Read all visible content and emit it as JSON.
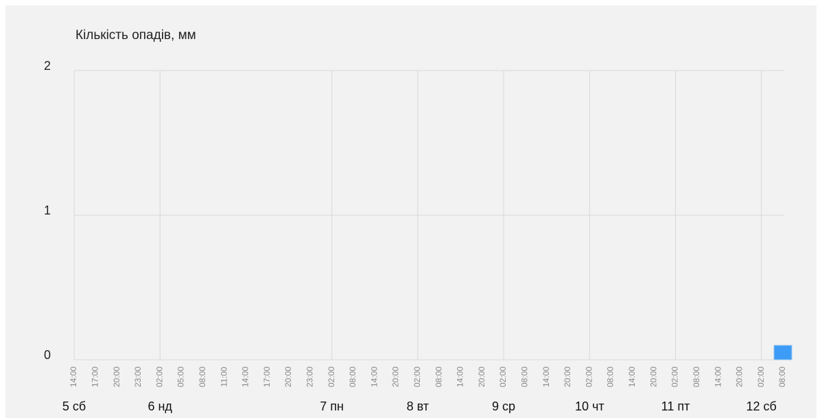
{
  "chart_data": {
    "type": "bar",
    "title": "Кількість опадів, мм",
    "categories": [
      "14:00",
      "17:00",
      "20:00",
      "23:00",
      "02:00",
      "05:00",
      "08:00",
      "11:00",
      "14:00",
      "17:00",
      "20:00",
      "23:00",
      "02:00",
      "08:00",
      "14:00",
      "20:00",
      "02:00",
      "08:00",
      "14:00",
      "20:00",
      "02:00",
      "08:00",
      "14:00",
      "20:00",
      "02:00",
      "08:00",
      "14:00",
      "20:00",
      "02:00",
      "08:00",
      "14:00",
      "20:00",
      "02:00",
      "08:00"
    ],
    "day_labels": [
      "5 сб",
      null,
      null,
      null,
      "6 нд",
      null,
      null,
      null,
      null,
      null,
      null,
      null,
      "7 пн",
      null,
      null,
      null,
      "8 вт",
      null,
      null,
      null,
      "9 ср",
      null,
      null,
      null,
      "10 чт",
      null,
      null,
      null,
      "11 пт",
      null,
      null,
      null,
      "12 сб",
      null
    ],
    "values": [
      0,
      0,
      0,
      0,
      0,
      0,
      0,
      0,
      0,
      0,
      0,
      0,
      0,
      0,
      0,
      0,
      0,
      0,
      0,
      0,
      0,
      0,
      0,
      0,
      0,
      0,
      0,
      0,
      0,
      0,
      0,
      0,
      0,
      0.1
    ],
    "color": "#3d9cf5",
    "ylim": [
      0,
      2
    ],
    "yticks": [
      0,
      1,
      2
    ],
    "grid": true
  }
}
